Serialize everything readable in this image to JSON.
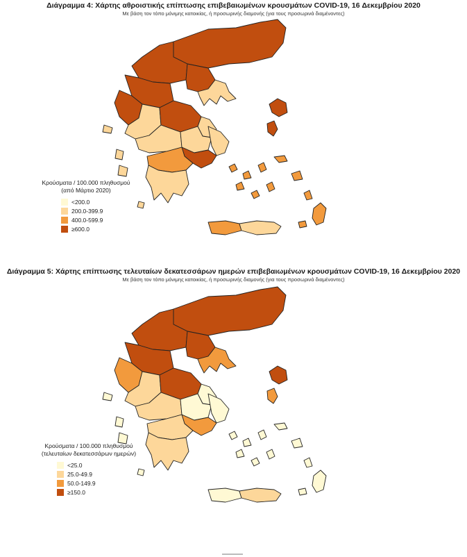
{
  "colors": {
    "c1": "#fff9d4",
    "c2": "#fdd79a",
    "c3": "#f29a3d",
    "c4": "#c14e0f"
  },
  "diagram1": {
    "title": "Διάγραμμα 4: Χάρτης αθροιστικής επίπτωσης επιβεβαιωμένων κρουσμάτων COVID-19, 16 Δεκεμβρίου 2020",
    "subtitle": "Με βάση τον τόπο μόνιμης κατοικίας, ή προσωρινής διαμονής (για τους προσωρινά διαμένοντες)",
    "legend_title_1": "Κρούσματα / 100.000 πληθυσμού",
    "legend_title_2": "(από Μάρτιο 2020)",
    "legend_items": [
      {
        "label": "<200.0",
        "color": "#fff9d4"
      },
      {
        "label": "200.0-399.9",
        "color": "#fdd79a"
      },
      {
        "label": "400.0-599.9",
        "color": "#f29a3d"
      },
      {
        "label": "≥600.0",
        "color": "#c14e0f"
      }
    ],
    "regions": {
      "north_east": "c4",
      "north_central": "c4",
      "thessaloniki": "c4",
      "chalkidiki": "c2",
      "west_macedonia": "c4",
      "epirus_north": "c4",
      "epirus_south": "c2",
      "thessaly": "c4",
      "magnesia": "c2",
      "central_greece": "c2",
      "fthiotida": "c2",
      "attica": "c4",
      "euboea": "c2",
      "peloponnese_north": "c3",
      "peloponnese_south": "c2",
      "ionian": "c2",
      "lesvos": "c4",
      "chios": "c4",
      "samos": "c3",
      "cyclades": "c3",
      "dodecanese": "c3",
      "crete_west": "c3",
      "crete_east": "c2"
    }
  },
  "diagram2": {
    "title": "Διάγραμμα 5: Χάρτης επίπτωσης τελευταίων δεκατεσσάρων ημερών επιβεβαιωμένων κρουσμάτων COVID-19, 16 Δεκεμβρίου 2020",
    "subtitle": "Με βάση τον τόπο μόνιμης κατοικίας, ή προσωρινής διαμονής (για τους προσωρινά διαμένοντες)",
    "legend_title_1": "Κρούσματα / 100.000 πληθυσμού",
    "legend_title_2": "(τελευταίων δεκατεσσάρων ημερών)",
    "legend_items": [
      {
        "label": "<25.0",
        "color": "#fff9d4"
      },
      {
        "label": "25.0-49.9",
        "color": "#fdd79a"
      },
      {
        "label": "50.0-149.9",
        "color": "#f29a3d"
      },
      {
        "label": "≥150.0",
        "color": "#c14e0f"
      }
    ],
    "regions": {
      "north_east": "c4",
      "north_central": "c4",
      "thessaloniki": "c4",
      "chalkidiki": "c3",
      "west_macedonia": "c4",
      "epirus_north": "c3",
      "epirus_south": "c2",
      "thessaly": "c4",
      "magnesia": "c1",
      "central_greece": "c2",
      "fthiotida": "c1",
      "attica": "c3",
      "euboea": "c1",
      "peloponnese_north": "c2",
      "peloponnese_south": "c2",
      "ionian": "c1",
      "lesvos": "c4",
      "chios": "c3",
      "samos": "c1",
      "cyclades": "c1",
      "dodecanese": "c1",
      "crete_west": "c1",
      "crete_east": "c2"
    }
  }
}
